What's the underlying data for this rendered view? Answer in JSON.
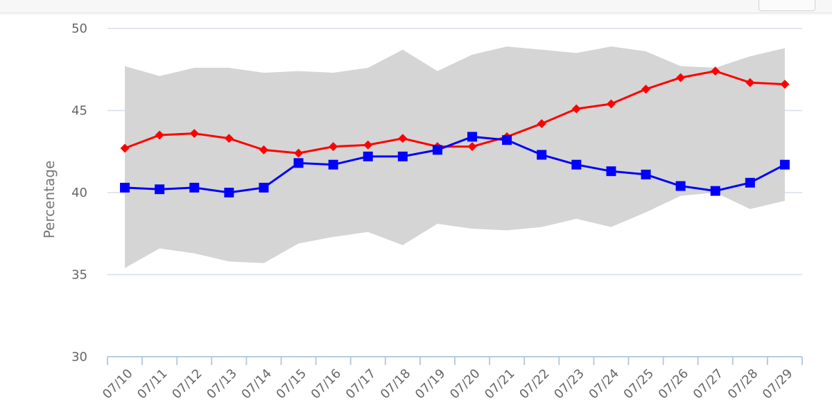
{
  "chart_data": {
    "type": "line",
    "title": "",
    "xlabel": "",
    "ylabel": "Percentage",
    "ylim": [
      30,
      50
    ],
    "y_ticks": [
      50,
      45,
      40,
      35,
      30
    ],
    "grid": true,
    "categories": [
      "07/10",
      "07/11",
      "07/12",
      "07/13",
      "07/14",
      "07/15",
      "07/16",
      "07/17",
      "07/18",
      "07/19",
      "07/20",
      "07/21",
      "07/22",
      "07/23",
      "07/24",
      "07/25",
      "07/26",
      "07/27",
      "07/28",
      "07/29"
    ],
    "series": [
      {
        "marker": "diamond",
        "color": "#ff0000",
        "values": [
          42.7,
          43.5,
          43.6,
          43.3,
          42.6,
          42.4,
          42.8,
          42.9,
          43.3,
          42.8,
          42.8,
          43.4,
          44.2,
          45.1,
          45.4,
          46.3,
          47.0,
          47.4,
          46.7,
          46.6
        ]
      },
      {
        "marker": "square",
        "color": "#0000ff",
        "values": [
          40.3,
          40.2,
          40.3,
          40.0,
          40.3,
          41.8,
          41.7,
          42.2,
          42.2,
          42.6,
          43.4,
          43.2,
          42.3,
          41.7,
          41.3,
          41.1,
          40.4,
          40.1,
          40.6,
          41.7
        ]
      }
    ],
    "band": {
      "color": "#d5d5d5",
      "upper": [
        47.7,
        47.1,
        47.6,
        47.6,
        47.3,
        47.4,
        47.3,
        47.6,
        48.7,
        47.4,
        48.4,
        48.9,
        48.7,
        48.5,
        48.9,
        48.6,
        47.7,
        47.6,
        48.3,
        48.8
      ],
      "lower": [
        35.4,
        36.6,
        36.3,
        35.8,
        35.7,
        36.9,
        37.3,
        37.6,
        36.8,
        38.1,
        37.8,
        37.7,
        37.9,
        38.4,
        37.9,
        38.8,
        39.8,
        40.0,
        39.0,
        39.5
      ]
    }
  }
}
